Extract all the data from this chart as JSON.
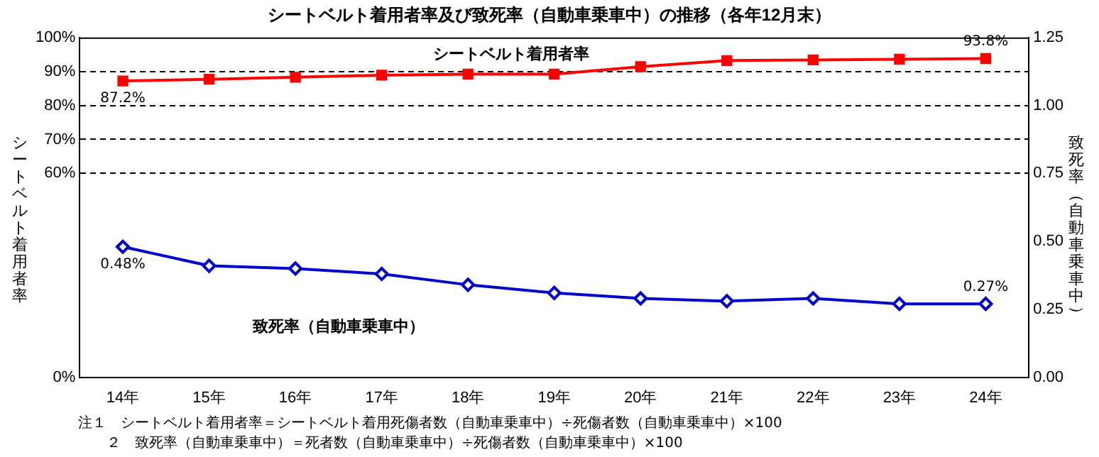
{
  "chart_data": {
    "type": "line",
    "title": "シートベルト着用者率及び致死率（自動車乗車中）の推移（各年12月末）",
    "ylabel": "シートベルト着用者率",
    "y2label": "致死率（自動車乗車中）",
    "categories": [
      "14年",
      "15年",
      "16年",
      "17年",
      "18年",
      "19年",
      "20年",
      "21年",
      "22年",
      "23年",
      "24年"
    ],
    "series": [
      {
        "name": "シートベルト着用者率",
        "color": "#ff0000",
        "marker": "square",
        "values": [
          87.2,
          87.7,
          88.3,
          88.9,
          89.2,
          89.2,
          91.4,
          93.2,
          93.4,
          93.6,
          93.8
        ],
        "value_labels": [
          "87.2%",
          null,
          null,
          null,
          null,
          null,
          null,
          null,
          null,
          null,
          "93.8%"
        ]
      },
      {
        "name": "致死率（自動車乗車中）",
        "color": "#0000cc",
        "marker": "diamond",
        "axis": "y2",
        "values": [
          0.48,
          0.41,
          0.4,
          0.38,
          0.34,
          0.31,
          0.29,
          0.28,
          0.29,
          0.27,
          0.27
        ],
        "value_labels": [
          "0.48%",
          null,
          null,
          null,
          null,
          null,
          null,
          null,
          null,
          null,
          "0.27%"
        ]
      }
    ],
    "ylim": [
      0,
      100
    ],
    "yticks": [
      {
        "value": 0,
        "label": "0%"
      },
      {
        "value": 60,
        "label": "60%"
      },
      {
        "value": 70,
        "label": "70%"
      },
      {
        "value": 80,
        "label": "80%"
      },
      {
        "value": 90,
        "label": "90%"
      },
      {
        "value": 100,
        "label": "100%"
      }
    ],
    "y2lim": [
      0,
      1.25
    ],
    "y2ticks": [
      {
        "value": 0,
        "label": "0.00"
      },
      {
        "value": 0.25,
        "label": "0.25"
      },
      {
        "value": 0.5,
        "label": "0.50"
      },
      {
        "value": 0.75,
        "label": "0.75"
      },
      {
        "value": 1,
        "label": "1.00"
      },
      {
        "value": 1.25,
        "label": "1.25"
      }
    ],
    "grid": "y",
    "line_style": "solid",
    "legend": false,
    "annotations": [
      "注１　シートベルト着用者率＝シートベルト着用死傷者数（自動車乗車中）÷死傷者数（自動車乗車中）×100",
      "２　致死率（自動車乗車中）＝死者数（自動車乗車中）÷死傷者数（自動車乗車中）×100"
    ]
  }
}
